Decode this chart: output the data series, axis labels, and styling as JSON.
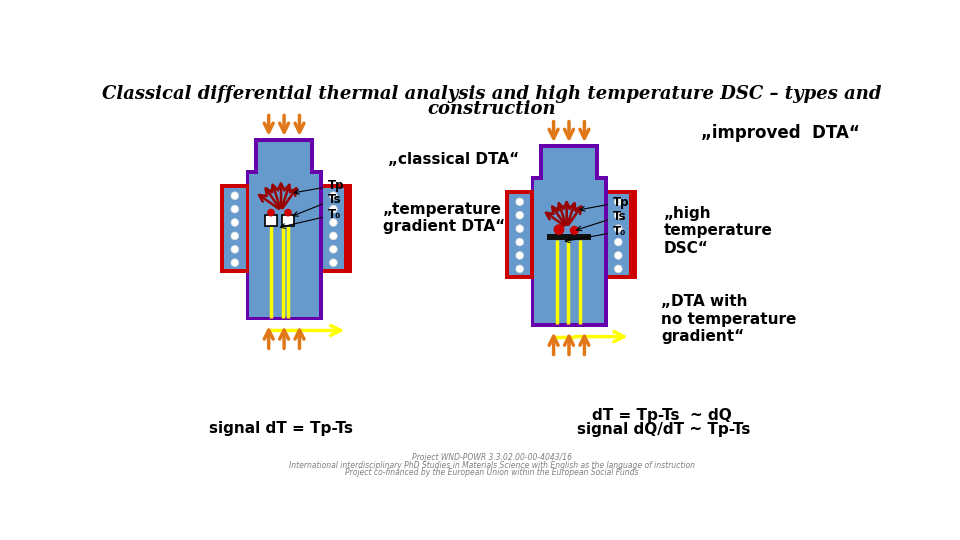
{
  "title_line1": "Classical differential thermal analysis and high temperature DSC – types and",
  "title_line2": "construction",
  "subtitle": "„improved  DTA“",
  "label_classical": "„classical DTA“",
  "label_temp_gradient": "„temperature\ngradient DTA“",
  "label_high_temp": "„high\ntemperature\nDSC“",
  "label_dta_no_grad": "„DTA with\nno temperature\ngradient“",
  "signal_left": "signal dT = Tp-Ts",
  "signal_right1": "dT = Tp-Ts  ~ dQ",
  "signal_right2": "signal dQ/dT ~ Tp-Ts",
  "Tp": "Tp",
  "Ts": "Ts",
  "T0": "T₀",
  "bg_color": "#ffffff",
  "furnace_outer_color": "#6600aa",
  "furnace_inner_color": "#6699cc",
  "furnace_side_outer": "#cc0000",
  "arrow_orange": "#e07818",
  "arrow_dark_red": "#990000",
  "arrow_yellow": "#ffff00",
  "sample_color": "#cc0000",
  "platform_color": "#111111",
  "circle_color": "#ffffff",
  "circle_outline": "#dddddd"
}
